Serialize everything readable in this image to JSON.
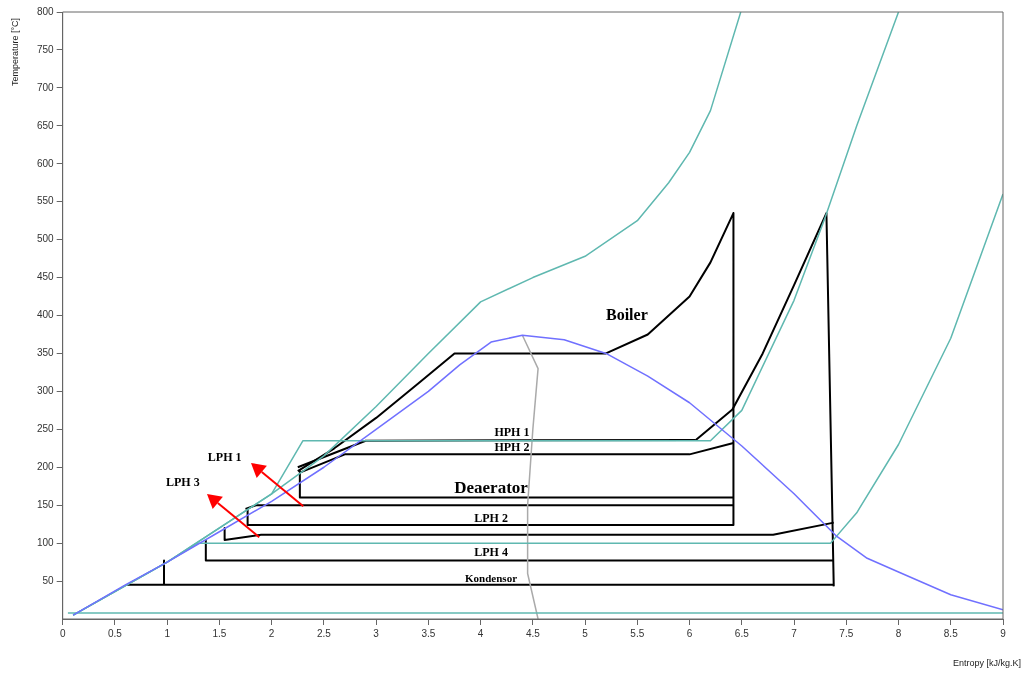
{
  "chart_data": {
    "type": "line",
    "xlabel": "Entropy [kJ/kg.K]",
    "ylabel": "Temperature [°C]",
    "xlim": [
      0,
      9
    ],
    "xticks": [
      0,
      0.5,
      1,
      1.5,
      2,
      2.5,
      3,
      3.5,
      4,
      4.5,
      5,
      5.5,
      6,
      6.5,
      7,
      7.5,
      8,
      8.5,
      9
    ],
    "ylim": [
      0,
      800
    ],
    "yticks": [
      50,
      100,
      150,
      200,
      250,
      300,
      350,
      400,
      450,
      500,
      550,
      600,
      650,
      700,
      750,
      800
    ],
    "grid": false,
    "legend": false,
    "marker": "none",
    "line_style": "solid",
    "series": [
      {
        "color": "#7070ff",
        "x": [
          0.1,
          0.6,
          1,
          1.5,
          2,
          2.5,
          3,
          3.5,
          3.8,
          4.1,
          4.4,
          4.8,
          5.2,
          5.6,
          6,
          6.5,
          7,
          7.4,
          7.7,
          8,
          8.5,
          9
        ],
        "values": [
          5,
          45,
          75,
          115,
          155,
          200,
          250,
          300,
          335,
          365,
          374,
          368,
          350,
          320,
          285,
          228,
          165,
          110,
          80,
          62,
          32,
          12
        ]
      },
      {
        "color": "#5fb8b0",
        "x": [
          0.1,
          1,
          2,
          2.5,
          3,
          3.5,
          4,
          4.5,
          5,
          5.5,
          5.8,
          6,
          6.2,
          6.49
        ],
        "values": [
          5,
          75,
          165,
          215,
          280,
          350,
          418,
          450,
          478,
          525,
          575,
          615,
          670,
          800
        ]
      },
      {
        "color": "#5fb8b0",
        "x": [
          0.1,
          1,
          2,
          2.3,
          6.2,
          6.5,
          7,
          7.3,
          7.6,
          8
        ],
        "values": [
          5,
          75,
          165,
          235,
          235,
          275,
          420,
          530,
          650,
          800
        ]
      },
      {
        "color": "#5fb8b0",
        "x": [
          0.1,
          1,
          1.3,
          7.35,
          7.6,
          8,
          8.5,
          9
        ],
        "values": [
          5,
          75,
          100,
          100,
          140,
          230,
          370,
          560
        ]
      },
      {
        "color": "#5fb8b0",
        "x": [
          0.05,
          9
        ],
        "values": [
          8,
          8
        ]
      },
      {
        "color": "#aaaaaa",
        "x": [
          4.4,
          4.55,
          4.5,
          4.45,
          4.45,
          4.55
        ],
        "values": [
          374,
          330,
          250,
          150,
          60,
          0
        ]
      },
      {
        "color": "#000000",
        "x": [
          2.25,
          2.6,
          3,
          3.4,
          3.75,
          5.2,
          5.6,
          6,
          6.2,
          6.42,
          6.42
        ],
        "values": [
          195,
          225,
          265,
          310,
          350,
          350,
          375,
          425,
          470,
          535,
          124
        ]
      },
      {
        "color": "#000000",
        "x": [
          6.06,
          6.41,
          6.7,
          7,
          7.31,
          7.38
        ],
        "values": [
          236,
          276,
          350,
          440,
          535,
          43
        ]
      },
      {
        "color": "#000000",
        "x": [
          2.25,
          2.9,
          6.06
        ],
        "values": [
          200,
          235,
          236
        ]
      },
      {
        "color": "#000000",
        "x": [
          2.27,
          2.7,
          6,
          6.42
        ],
        "values": [
          193,
          217,
          217,
          232
        ]
      },
      {
        "color": "#000000",
        "x": [
          2.27,
          2.27,
          6.42
        ],
        "values": [
          195,
          160,
          160
        ]
      },
      {
        "color": "#000000",
        "x": [
          1.75,
          1.85,
          6.42
        ],
        "values": [
          145,
          150,
          150
        ]
      },
      {
        "color": "#000000",
        "x": [
          1.77,
          1.77,
          6.42
        ],
        "values": [
          145,
          124,
          124
        ]
      },
      {
        "color": "#000000",
        "x": [
          1.55,
          1.55,
          1.9,
          6.8,
          7.38
        ],
        "values": [
          120,
          104,
          111,
          111,
          127
        ]
      },
      {
        "color": "#000000",
        "x": [
          1.37,
          1.37,
          7.38
        ],
        "values": [
          103,
          77,
          77
        ]
      },
      {
        "color": "#000000",
        "x": [
          0.97,
          0.97,
          0.62,
          7.38
        ],
        "values": [
          77,
          45,
          45,
          45
        ]
      }
    ],
    "annotations": [
      "Boiler",
      "HPH 1",
      "HPH 2",
      "Deaerator",
      "LPH 2",
      "LPH 4",
      "Kondensor",
      "LPH 1",
      "LPH 3"
    ]
  }
}
